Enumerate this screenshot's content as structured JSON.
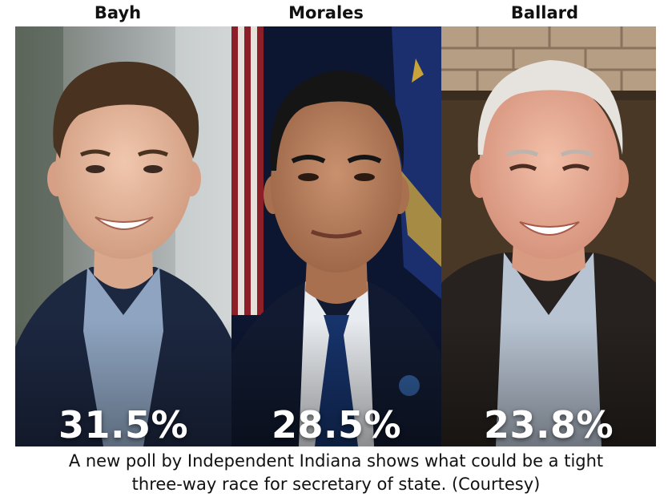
{
  "candidates": [
    {
      "name": "Bayh",
      "percent": "31.5%"
    },
    {
      "name": "Morales",
      "percent": "28.5%"
    },
    {
      "name": "Ballard",
      "percent": "23.8%"
    }
  ],
  "caption": {
    "line1": "A new poll by Independent Indiana shows what could be a tight",
    "line2": "three-way race for secretary of state. (Courtesy)"
  }
}
